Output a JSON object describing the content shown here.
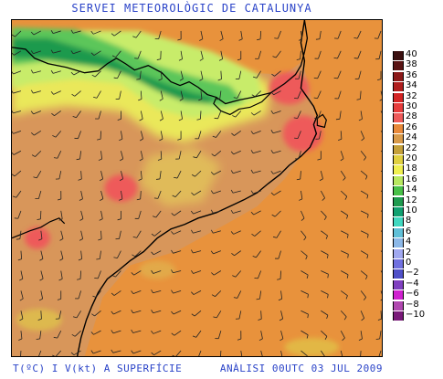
{
  "header": {
    "title": "SERVEI METEOROLÒGIC DE CATALUNYA"
  },
  "footer": {
    "left": "T(ºC) I V(kt) A SUPERFÍCIE",
    "right": "ANÀLISI 00UTC 03 JUL 2009"
  },
  "map": {
    "region": "Catalunya",
    "variables": [
      "temperature",
      "wind"
    ],
    "palette": {
      "sea": "#e8923c",
      "land_warm": "#d8965a",
      "hot": "#ee5a5a",
      "yellow": "#e8e858",
      "light_green": "#c8ec6a",
      "green": "#5cc65a",
      "dark_green": "#1e9a4e",
      "coast": "#000000"
    }
  },
  "legend": {
    "entries": [
      {
        "label": "40",
        "color": "#3b1010"
      },
      {
        "label": "38",
        "color": "#5a1414"
      },
      {
        "label": "36",
        "color": "#8c1a1a"
      },
      {
        "label": "34",
        "color": "#b01e1e"
      },
      {
        "label": "32",
        "color": "#d42424"
      },
      {
        "label": "30",
        "color": "#e63c3c"
      },
      {
        "label": "28",
        "color": "#ee5a5a"
      },
      {
        "label": "26",
        "color": "#e8893a"
      },
      {
        "label": "24",
        "color": "#d89a4a"
      },
      {
        "label": "22",
        "color": "#c4a03a"
      },
      {
        "label": "20",
        "color": "#e0d040"
      },
      {
        "label": "18",
        "color": "#f0f050"
      },
      {
        "label": "16",
        "color": "#b8e860"
      },
      {
        "label": "14",
        "color": "#48c048"
      },
      {
        "label": "12",
        "color": "#1e9a4e"
      },
      {
        "label": "10",
        "color": "#10a070"
      },
      {
        "label": "8",
        "color": "#40d8c0"
      },
      {
        "label": "6",
        "color": "#60c0d8"
      },
      {
        "label": "4",
        "color": "#8cb8e8"
      },
      {
        "label": "2",
        "color": "#a0a8f0"
      },
      {
        "label": "0",
        "color": "#7070e0"
      },
      {
        "label": "−2",
        "color": "#5050c8"
      },
      {
        "label": "−4",
        "color": "#8040c0"
      },
      {
        "label": "−6",
        "color": "#d020d0"
      },
      {
        "label": "−8",
        "color": "#b048b0"
      },
      {
        "label": "−10",
        "color": "#7a1a7a"
      }
    ]
  }
}
